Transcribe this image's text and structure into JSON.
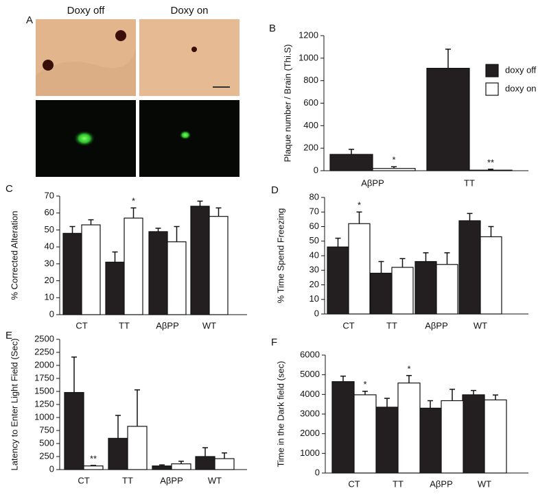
{
  "panel_a": {
    "label": "A",
    "columns": [
      "Doxy off",
      "Doxy on"
    ]
  },
  "chart_data": [
    {
      "type": "bar",
      "panel": "B",
      "ylabel": "Plaque number / Brain (Thi.S)",
      "categories": [
        "AβPP",
        "TT"
      ],
      "series": [
        {
          "name": "doxy off",
          "color": "#231f20",
          "values": [
            145,
            910
          ],
          "errors": [
            45,
            170
          ]
        },
        {
          "name": "doxy on",
          "color": "#ffffff",
          "values": [
            20,
            5
          ],
          "errors": [
            15,
            8
          ],
          "significance": [
            "*",
            "**"
          ]
        }
      ],
      "ylim": [
        0,
        1200
      ],
      "yticks": [
        0,
        200,
        400,
        600,
        800,
        1000,
        1200
      ],
      "legend": "right"
    },
    {
      "type": "bar",
      "panel": "C",
      "ylabel": "% Corrected Alteration",
      "categories": [
        "CT",
        "TT",
        "AβPP",
        "WT"
      ],
      "series": [
        {
          "color": "#231f20",
          "values": [
            48,
            31,
            49,
            64
          ],
          "errors": [
            4,
            6,
            2,
            3
          ]
        },
        {
          "color": "#ffffff",
          "values": [
            53,
            57,
            43,
            58
          ],
          "errors": [
            3,
            6,
            9,
            5
          ],
          "significance": [
            null,
            "*",
            null,
            null
          ]
        }
      ],
      "ylim": [
        0,
        70
      ],
      "yticks": [
        0,
        10,
        20,
        30,
        40,
        50,
        60,
        70
      ]
    },
    {
      "type": "bar",
      "panel": "D",
      "ylabel": "% Time Spend Freezing",
      "categories": [
        "CT",
        "TT",
        "AβPP",
        "WT"
      ],
      "series": [
        {
          "color": "#231f20",
          "values": [
            46,
            28,
            36,
            64
          ],
          "errors": [
            6,
            8,
            6,
            5
          ]
        },
        {
          "color": "#ffffff",
          "values": [
            62,
            32,
            34,
            53
          ],
          "errors": [
            8,
            6,
            8,
            7
          ],
          "significance": [
            "*",
            null,
            null,
            null
          ]
        }
      ],
      "ylim": [
        0,
        80
      ],
      "yticks": [
        0,
        10,
        20,
        30,
        40,
        50,
        60,
        70,
        80
      ]
    },
    {
      "type": "bar",
      "panel": "E",
      "ylabel": "Latency to Enter Light Field (Sec)",
      "categories": [
        "CT",
        "TT",
        "AβPP",
        "WT"
      ],
      "series": [
        {
          "color": "#231f20",
          "values": [
            1480,
            600,
            70,
            250
          ],
          "errors": [
            680,
            440,
            20,
            170
          ]
        },
        {
          "color": "#ffffff",
          "values": [
            70,
            830,
            110,
            210
          ],
          "errors": [
            10,
            700,
            50,
            110
          ],
          "significance": [
            "**",
            null,
            null,
            null
          ]
        }
      ],
      "ylim": [
        0,
        2500
      ],
      "yticks": [
        0,
        250,
        500,
        750,
        1000,
        1250,
        1500,
        1750,
        2000,
        2250,
        2500
      ]
    },
    {
      "type": "bar",
      "panel": "F",
      "ylabel": "Time in the Dark field (sec)",
      "categories": [
        "CT",
        "TT",
        "AβPP",
        "WT"
      ],
      "series": [
        {
          "color": "#231f20",
          "values": [
            4650,
            3350,
            3300,
            3980
          ],
          "errors": [
            280,
            450,
            380,
            220
          ]
        },
        {
          "color": "#ffffff",
          "values": [
            3980,
            4580,
            3680,
            3720
          ],
          "errors": [
            180,
            380,
            580,
            250
          ],
          "significance": [
            "*",
            "*",
            null,
            null
          ]
        }
      ],
      "ylim": [
        0,
        6000
      ],
      "yticks": [
        0,
        1000,
        2000,
        3000,
        4000,
        5000,
        6000
      ]
    }
  ]
}
